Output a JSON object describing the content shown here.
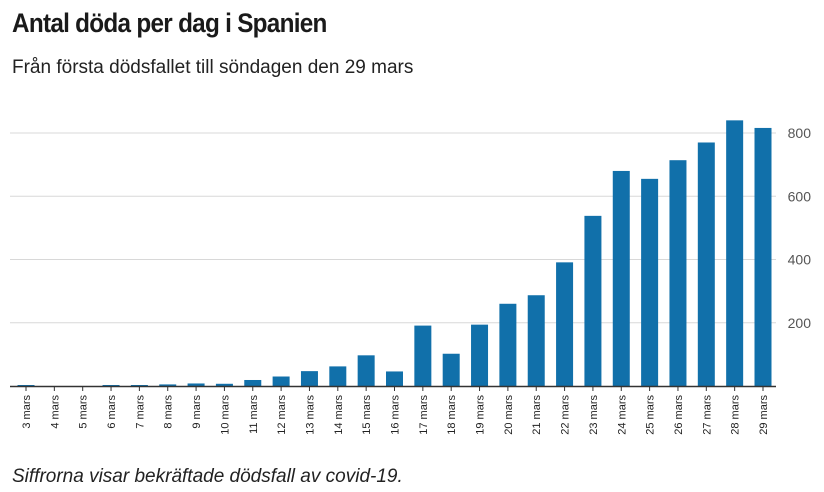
{
  "title": "Antal döda per dag i Spanien",
  "subtitle": "Från första dödsfallet till söndagen den 29 mars",
  "footnote": "Siffrorna visar bekräftade dödsfall av covid-19.",
  "colors": {
    "bar": "#1170aa",
    "grid": "#d8d8d8",
    "axis": "#333333"
  },
  "chart_data": {
    "type": "bar",
    "title": "Antal döda per dag i Spanien",
    "subtitle": "Från första dödsfallet till söndagen den 29 mars",
    "xlabel": "",
    "ylabel": "",
    "ylim": [
      0,
      800
    ],
    "yticks": [
      200,
      400,
      600,
      800
    ],
    "yaxis_position": "right",
    "grid": true,
    "categories": [
      "3 mars",
      "4 mars",
      "5 mars",
      "6 mars",
      "7 mars",
      "8 mars",
      "9 mars",
      "10 mars",
      "11 mars",
      "12 mars",
      "13 mars",
      "14 mars",
      "15 mars",
      "16 mars",
      "17 mars",
      "18 mars",
      "19 mars",
      "20 mars",
      "21 mars",
      "22 mars",
      "23 mars",
      "24 mars",
      "25 mars",
      "26 mars",
      "27 mars",
      "28 mars",
      "29 mars"
    ],
    "values": [
      1,
      0,
      0,
      3,
      3,
      5,
      8,
      7,
      19,
      30,
      47,
      62,
      97,
      46,
      191,
      102,
      194,
      260,
      287,
      391,
      538,
      680,
      655,
      714,
      770,
      840,
      816
    ]
  }
}
